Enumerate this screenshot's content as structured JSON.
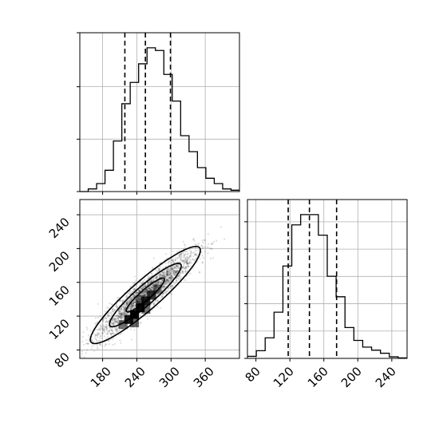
{
  "chart_data": {
    "type": "corner",
    "parameters": [
      {
        "id": "x",
        "hist_bins": [
          0,
          1,
          3,
          8,
          19,
          33,
          41,
          48,
          54,
          53,
          44,
          34,
          21,
          15,
          9,
          5,
          3,
          1,
          0.5
        ],
        "hist_range": [
          140,
          420
        ],
        "quantile_lines": [
          219,
          255,
          299
        ],
        "xlim": [
          140,
          420
        ],
        "ticks": [
          180,
          240,
          300,
          360
        ]
      },
      {
        "id": "y",
        "hist_bins": [
          0.4,
          1.5,
          4,
          9,
          18,
          26,
          28,
          28,
          24,
          16,
          12,
          6,
          3.5,
          2.2,
          1.6,
          1,
          0.3,
          0.1
        ],
        "hist_range": [
          70,
          258
        ],
        "quantile_lines": [
          118,
          143,
          175
        ],
        "xlim": [
          70,
          258
        ],
        "ticks": [
          80,
          120,
          160,
          200,
          240
        ]
      }
    ],
    "scatter_2d": {
      "x_param": "x",
      "y_param": "y",
      "xlim": [
        140,
        420
      ],
      "ylim": [
        70,
        258
      ],
      "x_ticks": [
        180,
        240,
        300,
        360
      ],
      "y_ticks": [
        80,
        120,
        160,
        200,
        240
      ],
      "mean": [
        255,
        145
      ],
      "sd": [
        42,
        25
      ],
      "correlation": 0.92
    },
    "tick_labels": {
      "x_bottom": [
        "180",
        "240",
        "300",
        "360"
      ],
      "y_left": [
        "80",
        "120",
        "160",
        "200",
        "240"
      ],
      "x_right_panel": [
        "80",
        "120",
        "160",
        "200",
        "240"
      ]
    },
    "grid": true,
    "colors": {
      "line": "#000000",
      "grid": "#b0b0b0",
      "background": "#ffffff"
    }
  }
}
